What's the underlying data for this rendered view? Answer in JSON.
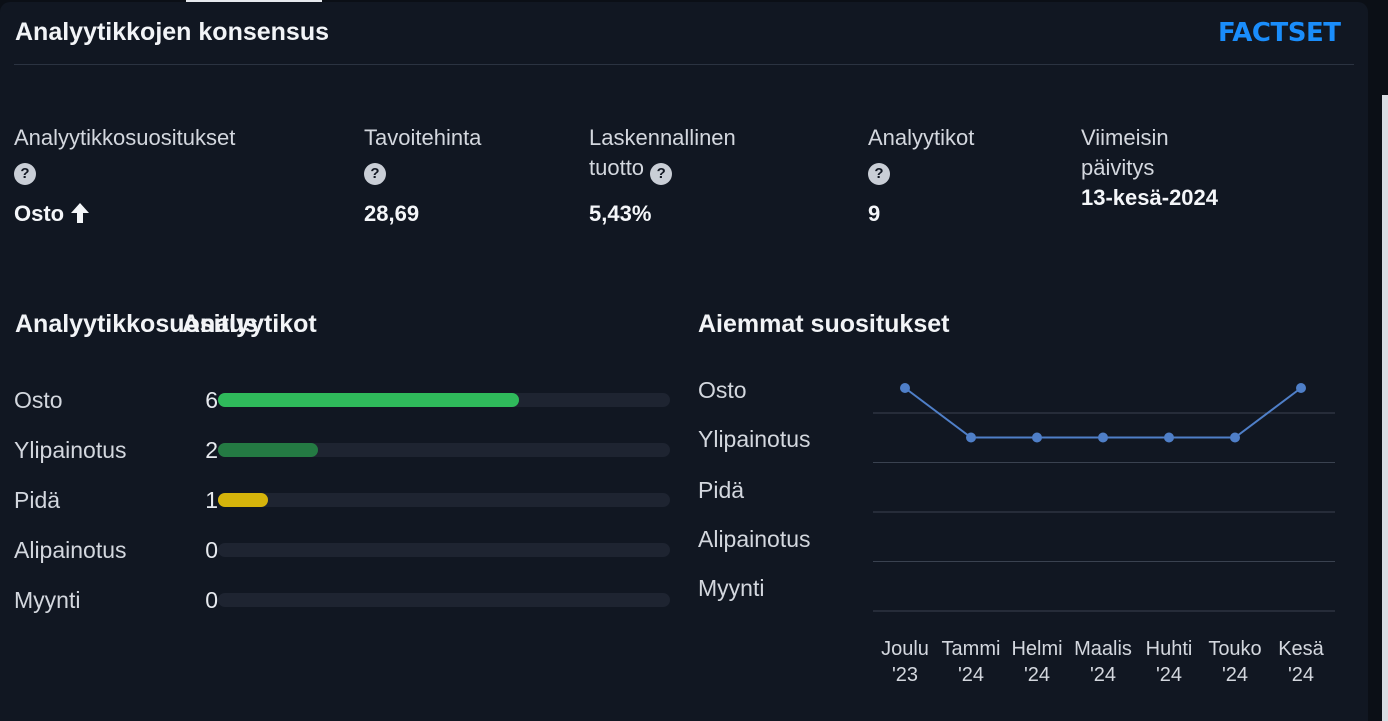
{
  "header": {
    "title": "Analyytikkojen konsensus",
    "logo": "FACTSET",
    "logo_color": "#1a8dfb"
  },
  "stats": [
    {
      "label": "Analyytikkosuositukset",
      "help": true,
      "value": "Osto",
      "trend_icon": "arrow-up-icon"
    },
    {
      "label": "Tavoitehinta",
      "help": true,
      "value": "28,69"
    },
    {
      "label": "Laskennallinen tuotto",
      "help": true,
      "value": "5,43%"
    },
    {
      "label": "Analyytikot",
      "help": true,
      "value": "9"
    },
    {
      "label": "Viimeisin päivitys",
      "help": false,
      "value": "13-kesä-2024"
    }
  ],
  "help_glyph": "?",
  "breakdown": {
    "title_a": "Analyytikkosuositus",
    "title_b": "Analyytikot",
    "rows": [
      {
        "label": "Osto",
        "count": "6",
        "fraction": 0.667,
        "color": "#2fba5b"
      },
      {
        "label": "Ylipainotus",
        "count": "2",
        "fraction": 0.222,
        "color": "#247a43"
      },
      {
        "label": "Pidä",
        "count": "1",
        "fraction": 0.111,
        "color": "#d6b40b"
      },
      {
        "label": "Alipainotus",
        "count": "0",
        "fraction": 0,
        "color": "#2fba5b"
      },
      {
        "label": "Myynti",
        "count": "0",
        "fraction": 0,
        "color": "#2fba5b"
      }
    ]
  },
  "history": {
    "title": "Aiemmat suositukset",
    "chart_data": {
      "type": "line",
      "categories": [
        "Joulu '23",
        "Tammi '24",
        "Helmi '24",
        "Maalis '24",
        "Huhti '24",
        "Touko '24",
        "Kesä '24"
      ],
      "y_categories": [
        "Osto",
        "Ylipainotus",
        "Pidä",
        "Alipainotus",
        "Myynti"
      ],
      "series": [
        {
          "values": [
            "Osto",
            "Ylipainotus",
            "Ylipainotus",
            "Ylipainotus",
            "Ylipainotus",
            "Ylipainotus",
            "Osto"
          ]
        }
      ],
      "x_labels": [
        {
          "line1": "Joulu",
          "line2": "'23"
        },
        {
          "line1": "Tammi",
          "line2": "'24"
        },
        {
          "line1": "Helmi",
          "line2": "'24"
        },
        {
          "line1": "Maalis",
          "line2": "'24"
        },
        {
          "line1": "Huhti",
          "line2": "'24"
        },
        {
          "line1": "Touko",
          "line2": "'24"
        },
        {
          "line1": "Kesä",
          "line2": "'24"
        }
      ],
      "line_color": "#4f7fc8",
      "grid": true
    }
  }
}
